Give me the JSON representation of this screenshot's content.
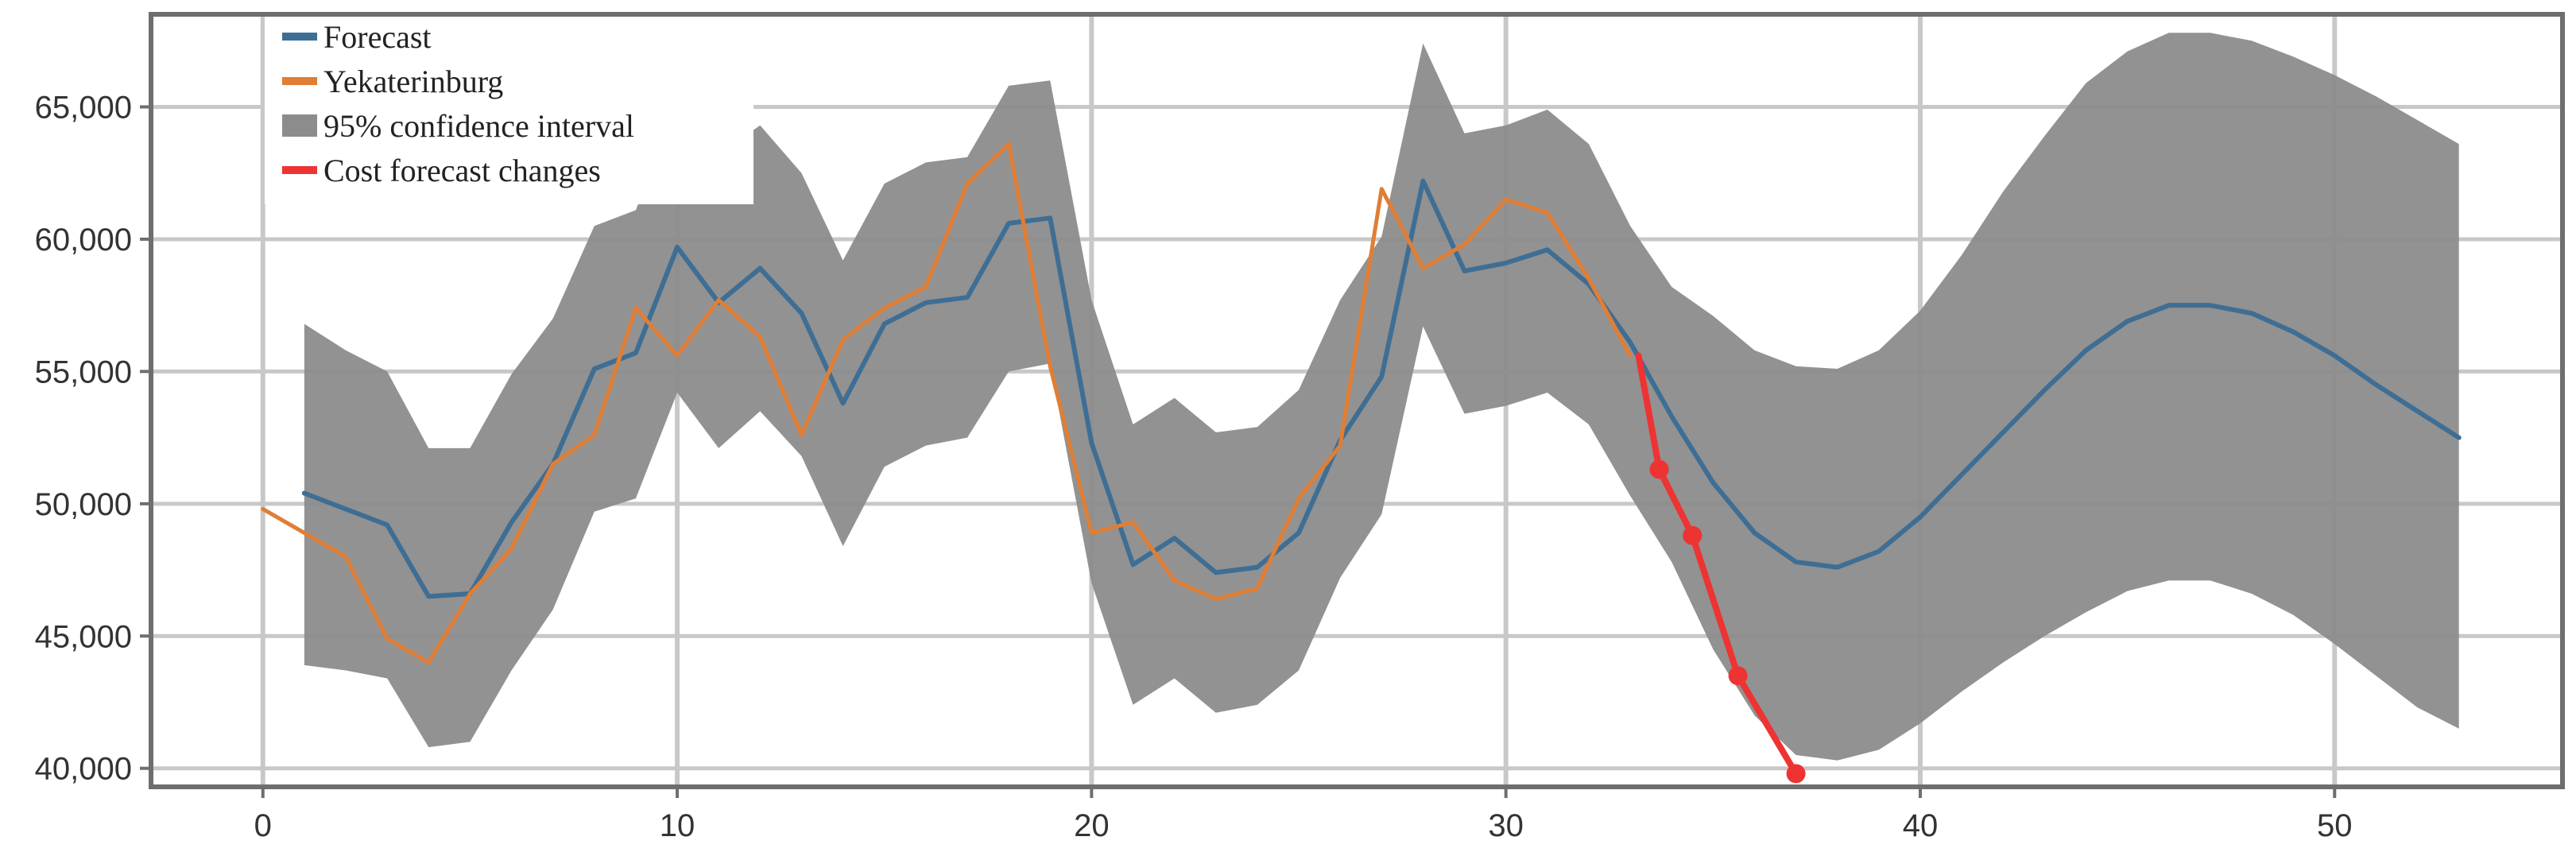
{
  "chart_data": {
    "type": "line",
    "title": "",
    "xlabel": "",
    "ylabel": "",
    "xlim": [
      -2.7,
      55.5
    ],
    "ylim": [
      39300,
      68500
    ],
    "x_ticks": [
      0,
      10,
      20,
      30,
      40,
      50
    ],
    "y_ticks": [
      40000,
      45000,
      50000,
      55000,
      60000,
      65000
    ],
    "x_tick_labels": [
      "0",
      "10",
      "20",
      "30",
      "40",
      "50"
    ],
    "y_tick_labels": [
      "40,000",
      "45,000",
      "50,000",
      "55,000",
      "60,000",
      "65,000"
    ],
    "grid": true,
    "legend_position": "top-left",
    "legend": [
      {
        "label": "Forecast",
        "color": "#3f6e94",
        "kind": "line"
      },
      {
        "label": "Yekaterinburg",
        "color": "#e07e35",
        "kind": "line"
      },
      {
        "label": "95% confidence interval",
        "color": "#8c8c8c",
        "kind": "patch"
      },
      {
        "label": "Cost forecast changes",
        "color": "#ee3333",
        "kind": "line"
      }
    ],
    "series": [
      {
        "name": "Forecast",
        "color": "#3f6e94",
        "points": [
          [
            1,
            50400
          ],
          [
            2,
            49800
          ],
          [
            3,
            49200
          ],
          [
            4,
            46500
          ],
          [
            5,
            46600
          ],
          [
            6,
            49300
          ],
          [
            7,
            51500
          ],
          [
            8,
            55100
          ],
          [
            9,
            55700
          ],
          [
            10,
            59700
          ],
          [
            11,
            57600
          ],
          [
            12,
            58900
          ],
          [
            13,
            57200
          ],
          [
            14,
            53800
          ],
          [
            15,
            56800
          ],
          [
            16,
            57600
          ],
          [
            17,
            57800
          ],
          [
            18,
            60600
          ],
          [
            19,
            60800
          ],
          [
            20,
            52300
          ],
          [
            21,
            47700
          ],
          [
            22,
            48700
          ],
          [
            23,
            47400
          ],
          [
            24,
            47600
          ],
          [
            25,
            48900
          ],
          [
            26,
            52400
          ],
          [
            27,
            54800
          ],
          [
            28,
            62200
          ],
          [
            29,
            58800
          ],
          [
            30,
            59100
          ],
          [
            31,
            59600
          ],
          [
            32,
            58300
          ],
          [
            33,
            56100
          ],
          [
            34,
            53300
          ],
          [
            35,
            50800
          ],
          [
            36,
            48900
          ],
          [
            37,
            47800
          ],
          [
            38,
            47600
          ],
          [
            39,
            48200
          ],
          [
            40,
            49500
          ],
          [
            41,
            51100
          ],
          [
            42,
            52700
          ],
          [
            43,
            54300
          ],
          [
            44,
            55800
          ],
          [
            45,
            56900
          ],
          [
            46,
            57500
          ],
          [
            47,
            57500
          ],
          [
            48,
            57200
          ],
          [
            49,
            56500
          ],
          [
            50,
            55600
          ],
          [
            51,
            54500
          ],
          [
            52,
            53500
          ],
          [
            53,
            52500
          ]
        ]
      },
      {
        "name": "Yekaterinburg",
        "color": "#e07e35",
        "points": [
          [
            0,
            49800
          ],
          [
            1,
            48900
          ],
          [
            2,
            48000
          ],
          [
            3,
            44900
          ],
          [
            4,
            44000
          ],
          [
            5,
            46600
          ],
          [
            6,
            48300
          ],
          [
            7,
            51500
          ],
          [
            8,
            52600
          ],
          [
            9,
            57400
          ],
          [
            10,
            55600
          ],
          [
            11,
            57700
          ],
          [
            12,
            56300
          ],
          [
            13,
            52600
          ],
          [
            14,
            56200
          ],
          [
            15,
            57400
          ],
          [
            16,
            58200
          ],
          [
            17,
            62100
          ],
          [
            18,
            63600
          ],
          [
            19,
            55200
          ],
          [
            20,
            48900
          ],
          [
            21,
            49300
          ],
          [
            22,
            47100
          ],
          [
            23,
            46400
          ],
          [
            24,
            46800
          ],
          [
            25,
            50200
          ],
          [
            26,
            52200
          ],
          [
            27,
            61900
          ],
          [
            28,
            58900
          ],
          [
            29,
            59800
          ],
          [
            30,
            61500
          ],
          [
            31,
            61000
          ],
          [
            32,
            58500
          ],
          [
            33,
            55600
          ]
        ]
      },
      {
        "name": "95% confidence interval",
        "color": "#8c8c8c",
        "upper": [
          [
            1,
            56800
          ],
          [
            2,
            55800
          ],
          [
            3,
            55000
          ],
          [
            4,
            52100
          ],
          [
            5,
            52100
          ],
          [
            6,
            54900
          ],
          [
            7,
            57000
          ],
          [
            8,
            60500
          ],
          [
            9,
            61100
          ],
          [
            10,
            65000
          ],
          [
            11,
            63200
          ],
          [
            12,
            64300
          ],
          [
            13,
            62500
          ],
          [
            14,
            59200
          ],
          [
            15,
            62100
          ],
          [
            16,
            62900
          ],
          [
            17,
            63100
          ],
          [
            18,
            65800
          ],
          [
            19,
            66000
          ],
          [
            20,
            57700
          ],
          [
            21,
            53000
          ],
          [
            22,
            54000
          ],
          [
            23,
            52700
          ],
          [
            24,
            52900
          ],
          [
            25,
            54300
          ],
          [
            26,
            57700
          ],
          [
            27,
            60100
          ],
          [
            28,
            67400
          ],
          [
            29,
            64000
          ],
          [
            30,
            64300
          ],
          [
            31,
            64900
          ],
          [
            32,
            63600
          ],
          [
            33,
            60500
          ],
          [
            34,
            58200
          ],
          [
            35,
            57100
          ],
          [
            36,
            55800
          ],
          [
            37,
            55200
          ],
          [
            38,
            55100
          ],
          [
            39,
            55800
          ],
          [
            40,
            57300
          ],
          [
            41,
            59400
          ],
          [
            42,
            61800
          ],
          [
            43,
            63900
          ],
          [
            44,
            65900
          ],
          [
            45,
            67100
          ],
          [
            46,
            67800
          ],
          [
            47,
            67800
          ],
          [
            48,
            67500
          ],
          [
            49,
            66900
          ],
          [
            50,
            66200
          ],
          [
            51,
            65400
          ],
          [
            52,
            64500
          ],
          [
            53,
            63600
          ]
        ],
        "lower": [
          [
            1,
            43900
          ],
          [
            2,
            43700
          ],
          [
            3,
            43400
          ],
          [
            4,
            40800
          ],
          [
            5,
            41000
          ],
          [
            6,
            43700
          ],
          [
            7,
            46000
          ],
          [
            8,
            49700
          ],
          [
            9,
            50200
          ],
          [
            10,
            54200
          ],
          [
            11,
            52100
          ],
          [
            12,
            53500
          ],
          [
            13,
            51800
          ],
          [
            14,
            48400
          ],
          [
            15,
            51400
          ],
          [
            16,
            52200
          ],
          [
            17,
            52500
          ],
          [
            18,
            55000
          ],
          [
            19,
            55300
          ],
          [
            20,
            47000
          ],
          [
            21,
            42400
          ],
          [
            22,
            43400
          ],
          [
            23,
            42100
          ],
          [
            24,
            42400
          ],
          [
            25,
            43700
          ],
          [
            26,
            47200
          ],
          [
            27,
            49600
          ],
          [
            28,
            56700
          ],
          [
            29,
            53400
          ],
          [
            30,
            53700
          ],
          [
            31,
            54200
          ],
          [
            32,
            53000
          ],
          [
            33,
            50300
          ],
          [
            34,
            47800
          ],
          [
            35,
            44500
          ],
          [
            36,
            42000
          ],
          [
            37,
            40500
          ],
          [
            38,
            40300
          ],
          [
            39,
            40700
          ],
          [
            40,
            41700
          ],
          [
            41,
            42900
          ],
          [
            42,
            44000
          ],
          [
            43,
            45000
          ],
          [
            44,
            45900
          ],
          [
            45,
            46700
          ],
          [
            46,
            47100
          ],
          [
            47,
            47100
          ],
          [
            48,
            46600
          ],
          [
            49,
            45800
          ],
          [
            50,
            44700
          ],
          [
            51,
            43500
          ],
          [
            52,
            42300
          ],
          [
            53,
            41500
          ]
        ]
      },
      {
        "name": "Cost forecast changes",
        "color": "#ee3333",
        "points": [
          [
            33.2,
            55600
          ],
          [
            33.7,
            51300
          ],
          [
            34.5,
            48800
          ],
          [
            35.6,
            43500
          ],
          [
            37,
            39800
          ]
        ],
        "marker_points": [
          [
            33.7,
            51300
          ],
          [
            34.5,
            48800
          ],
          [
            35.6,
            43500
          ],
          [
            37,
            39800
          ]
        ]
      }
    ]
  }
}
